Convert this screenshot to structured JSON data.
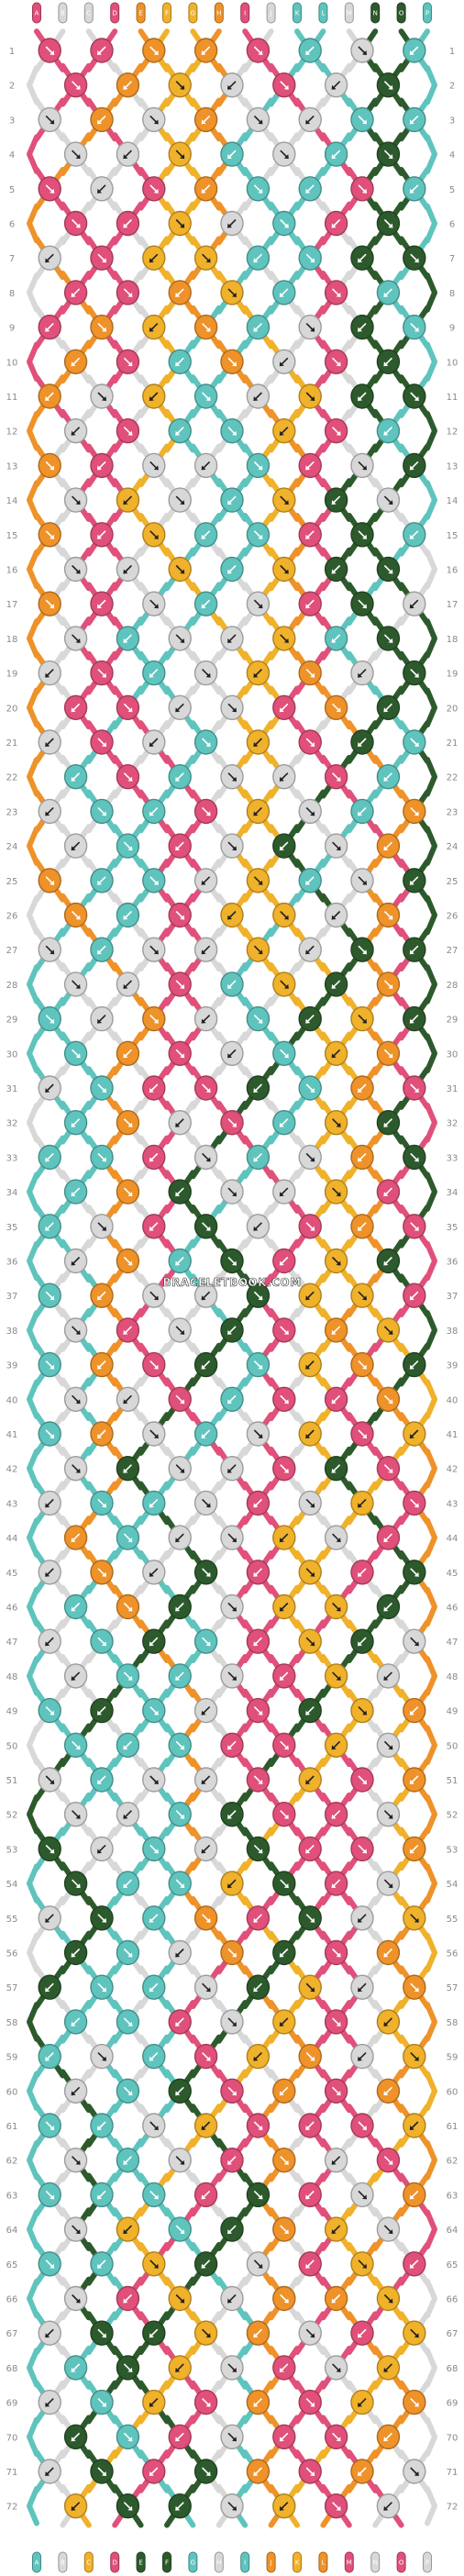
{
  "watermark": "BRACELETBOOK.COM",
  "pattern": {
    "rows": 72,
    "strings": 16,
    "column_letters": [
      "A",
      "B",
      "C",
      "D",
      "E",
      "F",
      "G",
      "H",
      "I",
      "J",
      "K",
      "L",
      "M",
      "N",
      "O",
      "P"
    ],
    "colors": {
      "pink": "#e0507a",
      "light_gray": "#d8d8d8",
      "yellow": "#f0b12b",
      "orange": "#ee9229",
      "teal": "#5fc4bd",
      "dark_green": "#2d5a2c"
    },
    "string_colors": [
      "pink",
      "light_gray",
      "light_gray",
      "pink",
      "orange",
      "yellow",
      "yellow",
      "orange",
      "pink",
      "light_gray",
      "teal",
      "teal",
      "light_gray",
      "dark_green",
      "dark_green",
      "teal"
    ],
    "row_labels": [
      "1",
      "2",
      "3",
      "4",
      "5",
      "6",
      "7",
      "8",
      "9",
      "10",
      "11",
      "12",
      "13",
      "14",
      "15",
      "16",
      "17",
      "18",
      "19",
      "20",
      "21",
      "22",
      "23",
      "24",
      "25",
      "26",
      "27",
      "28",
      "29",
      "30",
      "31",
      "32",
      "33",
      "34",
      "35",
      "36",
      "37",
      "38",
      "39",
      "40",
      "41",
      "42",
      "43",
      "44",
      "45",
      "46",
      "47",
      "48",
      "49",
      "50",
      "51",
      "52",
      "53",
      "54",
      "55",
      "56",
      "57",
      "58",
      "59",
      "60",
      "61",
      "62",
      "63",
      "64",
      "65",
      "66",
      "67",
      "68",
      "69",
      "70",
      "71",
      "72"
    ]
  }
}
